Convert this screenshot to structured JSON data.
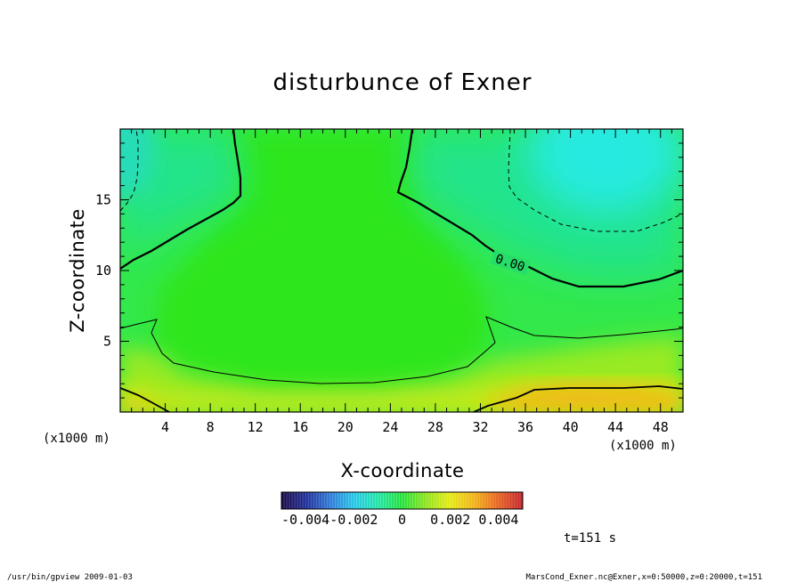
{
  "chart_data": {
    "type": "heatmap",
    "title": "disturbunce of Exner",
    "xlabel": "X-coordinate",
    "ylabel": "Z-coordinate",
    "x_unit_label": "(x1000 m)",
    "xlim": [
      0,
      50
    ],
    "ylim": [
      0,
      20
    ],
    "x_ticks": [
      4,
      8,
      12,
      16,
      20,
      24,
      28,
      32,
      36,
      40,
      44,
      48
    ],
    "y_ticks": [
      5,
      10,
      15
    ],
    "contour_label": "0.00",
    "color_scale": {
      "min": -0.005,
      "max": 0.005,
      "tick_values": [
        -0.004,
        -0.002,
        0,
        0.002,
        0.004
      ],
      "tick_labels": [
        "-0.004",
        "-0.002",
        "0",
        "0.002",
        "0.004"
      ],
      "colors": [
        "#1b0a4a",
        "#1f2f9a",
        "#2f7bd8",
        "#27c8e8",
        "#22e6a8",
        "#26e03a",
        "#8fe41f",
        "#e5ea14",
        "#f2b418",
        "#e8641e",
        "#c4262a"
      ]
    },
    "grid": false,
    "legend": "bottom-center"
  },
  "footer": {
    "time_label": "t=151 s",
    "program": "/usr/bin/gpview   2009-01-03",
    "source": "MarsCond_Exner.nc@Exner,x=0:50000,z=0:20000,t=151"
  }
}
